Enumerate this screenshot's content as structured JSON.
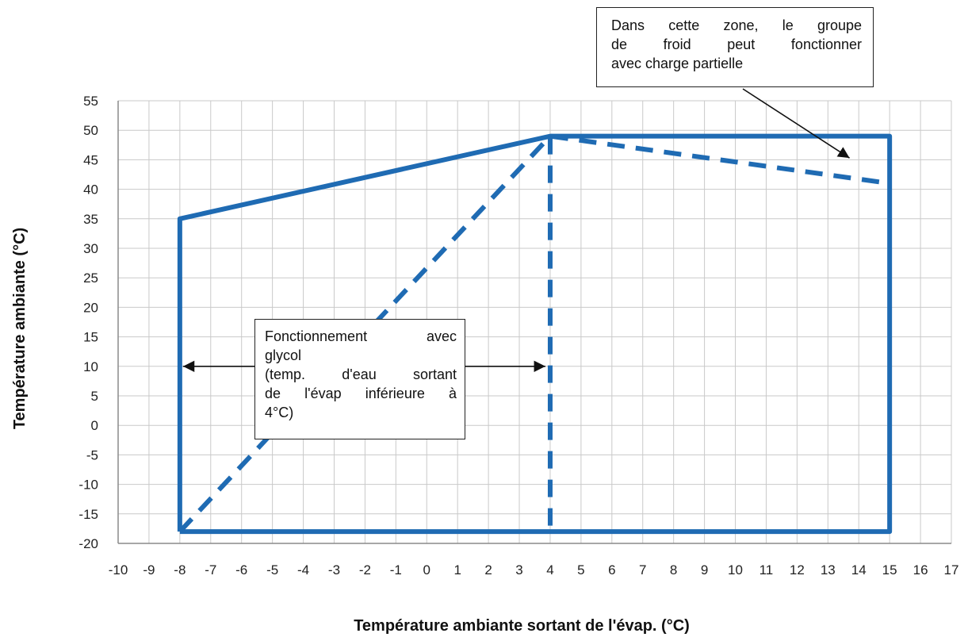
{
  "colors": {
    "envelope": "#1f6bb3",
    "grid": "#c9c9c9",
    "axis": "#8a8a8a",
    "arrow": "#111111"
  },
  "chart_data": {
    "type": "line",
    "title": "",
    "xlabel": "Température ambiante sortant de l'évap. (°C)",
    "ylabel": "Température ambiante (°C)",
    "xlim": [
      -10,
      17
    ],
    "ylim": [
      -20,
      55
    ],
    "x_ticks": [
      "-10",
      "-9",
      "-8",
      "-7",
      "-6",
      "-5",
      "-4",
      "-3",
      "-2",
      "-1",
      "0",
      "1",
      "2",
      "3",
      "4",
      "5",
      "6",
      "7",
      "8",
      "9",
      "10",
      "11",
      "12",
      "13",
      "14",
      "15",
      "16",
      "17"
    ],
    "y_ticks": [
      "55",
      "50",
      "45",
      "40",
      "35",
      "30",
      "25",
      "20",
      "15",
      "10",
      "5",
      "0",
      "-5",
      "-10",
      "-15",
      "-20"
    ],
    "grid": true,
    "series": [
      {
        "style": "solid",
        "x": [
          -8,
          -8,
          4,
          15,
          15,
          -8
        ],
        "y": [
          -18,
          35,
          49,
          49,
          -18,
          -18
        ]
      },
      {
        "style": "dashed",
        "x": [
          -8,
          4,
          15
        ],
        "y": [
          -18,
          49,
          41
        ]
      },
      {
        "style": "dashed",
        "x": [
          4,
          4
        ],
        "y": [
          -17,
          49
        ]
      }
    ],
    "annotations": [
      {
        "id": "partial-load",
        "lines": [
          "Dans cette zone, le groupe",
          "de froid peut fonctionner",
          "avec charge partielle"
        ],
        "arrow_to": [
          13.7,
          45.3
        ]
      },
      {
        "id": "glycol",
        "lines": [
          "Fonctionnement avec",
          "glycol",
          "(temp. d'eau sortant",
          "de l'évap inférieure à",
          "4°C)"
        ],
        "arrow_left_to": [
          -8,
          10
        ],
        "arrow_right_to": [
          4,
          10
        ]
      }
    ]
  }
}
